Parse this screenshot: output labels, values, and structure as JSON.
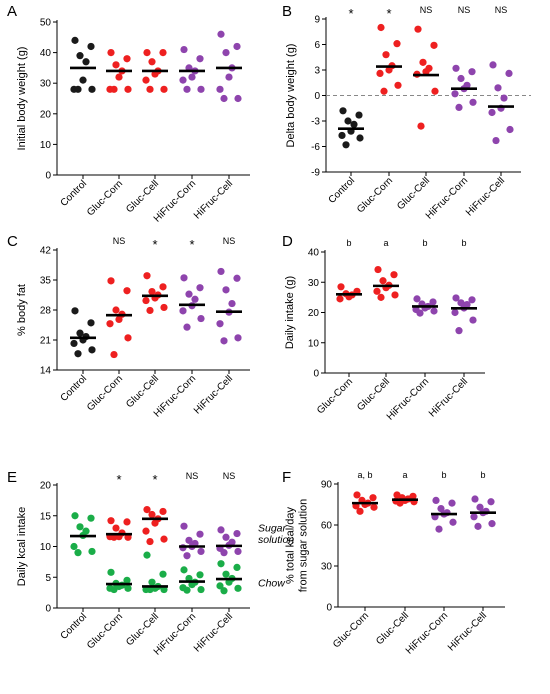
{
  "colors": {
    "black": "#1a1a1a",
    "red": "#ee2020",
    "purple": "#8e44ad",
    "green": "#1aad48"
  },
  "chart_data": [
    {
      "id": "A",
      "panel_label": "A",
      "type": "scatter",
      "ylabel": "Initial body weight (g)",
      "ylim": [
        0,
        50
      ],
      "yticks": [
        0,
        10,
        20,
        30,
        40,
        50
      ],
      "categories": [
        "Control",
        "Gluc-Corn",
        "Gluc-Cell",
        "HiFruc-Corn",
        "HiFruc-Cell"
      ],
      "annotations": [
        "",
        "",
        "",
        "",
        ""
      ],
      "reference_line": null,
      "groups": [
        {
          "category": "Control",
          "color": "black",
          "mean": 35,
          "points": [
            44,
            42,
            39,
            37,
            31,
            28,
            28,
            28
          ]
        },
        {
          "category": "Gluc-Corn",
          "color": "red",
          "mean": 34,
          "points": [
            40,
            38,
            36,
            34,
            32,
            28,
            28,
            28
          ]
        },
        {
          "category": "Gluc-Cell",
          "color": "red",
          "mean": 34,
          "points": [
            40,
            40,
            37,
            34,
            33,
            31,
            28,
            28
          ]
        },
        {
          "category": "HiFruc-Corn",
          "color": "purple",
          "mean": 34,
          "points": [
            41,
            38,
            35,
            34,
            32,
            31,
            28,
            28
          ]
        },
        {
          "category": "HiFruc-Cell",
          "color": "purple",
          "mean": 35,
          "points": [
            46,
            42,
            40,
            35,
            32,
            28,
            25,
            25
          ]
        }
      ]
    },
    {
      "id": "B",
      "panel_label": "B",
      "type": "scatter",
      "ylabel": "Delta body weight (g)",
      "ylim": [
        -9,
        9
      ],
      "yticks": [
        -9,
        -6,
        -3,
        0,
        3,
        6,
        9
      ],
      "categories": [
        "Control",
        "Gluc-Corn",
        "Gluc-Cell",
        "HiFruc-Corn",
        "HiFruc-Cell"
      ],
      "annotations": [
        "*",
        "*",
        "NS",
        "NS",
        "NS"
      ],
      "reference_line": 0,
      "groups": [
        {
          "category": "Control",
          "color": "black",
          "mean": -3.9,
          "points": [
            -1.8,
            -2.3,
            -3.0,
            -3.4,
            -4.2,
            -4.7,
            -5.0,
            -5.8
          ]
        },
        {
          "category": "Gluc-Corn",
          "color": "red",
          "mean": 3.4,
          "points": [
            8.0,
            6.1,
            4.8,
            3.5,
            3.0,
            2.6,
            1.2,
            0.5
          ]
        },
        {
          "category": "Gluc-Cell",
          "color": "red",
          "mean": 2.4,
          "points": [
            7.8,
            5.9,
            3.9,
            3.2,
            2.8,
            2.5,
            0.5,
            -3.6
          ]
        },
        {
          "category": "HiFruc-Corn",
          "color": "purple",
          "mean": 0.8,
          "points": [
            3.2,
            2.8,
            2.0,
            1.2,
            0.8,
            0.2,
            -0.8,
            -1.4
          ]
        },
        {
          "category": "HiFruc-Cell",
          "color": "purple",
          "mean": -1.3,
          "points": [
            3.6,
            2.6,
            0.9,
            -0.3,
            -1.5,
            -2.0,
            -4.0,
            -5.3
          ]
        }
      ]
    },
    {
      "id": "C",
      "panel_label": "C",
      "type": "scatter",
      "ylabel": "% body fat",
      "ylim": [
        14,
        42
      ],
      "yticks": [
        14,
        21,
        28,
        35,
        42
      ],
      "categories": [
        "Control",
        "Gluc-Corn",
        "Gluc-Cell",
        "HiFruc-Corn",
        "HiFruc-Cell"
      ],
      "annotations": [
        "",
        "NS",
        "*",
        "*",
        "NS"
      ],
      "reference_line": null,
      "groups": [
        {
          "category": "Control",
          "color": "black",
          "mean": 21.5,
          "points": [
            27.8,
            25.0,
            22.6,
            21.8,
            21.0,
            20.2,
            18.7,
            17.8
          ]
        },
        {
          "category": "Gluc-Corn",
          "color": "red",
          "mean": 26.8,
          "points": [
            34.8,
            32.5,
            28.0,
            27.0,
            25.8,
            24.8,
            21.5,
            17.6
          ]
        },
        {
          "category": "Gluc-Cell",
          "color": "red",
          "mean": 31.3,
          "points": [
            36.0,
            33.4,
            32.3,
            31.5,
            30.8,
            30.2,
            28.6,
            27.9
          ]
        },
        {
          "category": "HiFruc-Corn",
          "color": "purple",
          "mean": 29.2,
          "points": [
            35.5,
            33.2,
            31.7,
            30.5,
            29.0,
            27.8,
            26.0,
            24.0
          ]
        },
        {
          "category": "HiFruc-Cell",
          "color": "purple",
          "mean": 27.6,
          "points": [
            37.0,
            35.4,
            32.7,
            29.5,
            27.5,
            24.8,
            21.5,
            20.8
          ]
        }
      ]
    },
    {
      "id": "D",
      "panel_label": "D",
      "type": "scatter",
      "ylabel": "Daily intake (g)",
      "ylim": [
        0,
        40
      ],
      "yticks": [
        0,
        10,
        20,
        30,
        40
      ],
      "categories": [
        "Gluc-Corn",
        "Gluc-Cell",
        "HiFruc-Corn",
        "HiFruc-Cell"
      ],
      "annotations": [
        "b",
        "a",
        "b",
        "b"
      ],
      "reference_line": null,
      "groups": [
        {
          "category": "Gluc-Corn",
          "color": "red",
          "mean": 26,
          "points": [
            28.5,
            27.0,
            26.2,
            25.8,
            25.2,
            24.5
          ]
        },
        {
          "category": "Gluc-Cell",
          "color": "red",
          "mean": 28.8,
          "points": [
            34.2,
            32.5,
            30.5,
            29.0,
            28.2,
            27.0,
            25.8,
            25.0
          ]
        },
        {
          "category": "HiFruc-Corn",
          "color": "purple",
          "mean": 22,
          "points": [
            24.5,
            23.5,
            22.8,
            22.0,
            21.5,
            21.0,
            20.5,
            19.8
          ]
        },
        {
          "category": "HiFruc-Cell",
          "color": "purple",
          "mean": 21.4,
          "points": [
            24.8,
            24.2,
            23.2,
            22.6,
            21.5,
            20.0,
            17.5,
            14.0
          ]
        }
      ]
    },
    {
      "id": "E",
      "panel_label": "E",
      "type": "scatter",
      "ylabel": "Daily kcal intake",
      "ylim": [
        0,
        20
      ],
      "yticks": [
        0,
        5,
        10,
        15,
        20
      ],
      "categories": [
        "Control",
        "Gluc-Corn",
        "Gluc-Cell",
        "HiFruc-Corn",
        "HiFruc-Cell"
      ],
      "annotations": [
        "",
        "*",
        "*",
        "NS",
        "NS"
      ],
      "side_labels": [
        {
          "text": "Sugar",
          "value": 12.4
        },
        {
          "text": "solution",
          "value": 10.6
        },
        {
          "text": "Chow",
          "value": 3.5
        }
      ],
      "reference_line": null,
      "groups": [
        {
          "category": "Control",
          "color": "green",
          "mean": 11.7,
          "points": [
            15.0,
            14.6,
            13.2,
            12.5,
            11.8,
            10.0,
            9.2,
            9.0
          ]
        },
        {
          "category": "Gluc-Corn",
          "color": "red",
          "mean": 12.0,
          "points": [
            14.2,
            14.0,
            13.0,
            12.2,
            11.6,
            11.6,
            11.5,
            11.5
          ]
        },
        {
          "category": "Gluc-Corn",
          "color": "green",
          "mean": 3.9,
          "points": [
            5.8,
            4.5,
            4.0,
            3.7,
            3.5,
            3.2,
            3.2,
            3.0
          ]
        },
        {
          "category": "Gluc-Cell",
          "color": "red",
          "mean": 14.5,
          "points": [
            16.0,
            15.7,
            15.2,
            14.5,
            13.8,
            12.5,
            11.2,
            10.8
          ]
        },
        {
          "category": "Gluc-Cell",
          "color": "green",
          "mean": 3.5,
          "points": [
            8.6,
            5.5,
            4.2,
            3.5,
            3.2,
            3.0,
            3.0,
            3.0
          ]
        },
        {
          "category": "HiFruc-Corn",
          "color": "purple",
          "mean": 10.0,
          "points": [
            13.3,
            12.0,
            11.0,
            10.5,
            10.0,
            9.8,
            9.2,
            8.5
          ]
        },
        {
          "category": "HiFruc-Corn",
          "color": "green",
          "mean": 4.3,
          "points": [
            6.2,
            5.4,
            4.8,
            4.2,
            3.8,
            3.3,
            3.0,
            2.9
          ]
        },
        {
          "category": "HiFruc-Cell",
          "color": "purple",
          "mean": 10.1,
          "points": [
            12.7,
            12.1,
            11.5,
            10.7,
            10.2,
            9.7,
            9.2,
            9.0
          ]
        },
        {
          "category": "HiFruc-Cell",
          "color": "green",
          "mean": 4.7,
          "points": [
            7.2,
            6.6,
            5.5,
            4.8,
            4.2,
            3.6,
            3.2,
            2.8
          ]
        }
      ]
    },
    {
      "id": "F",
      "panel_label": "F",
      "type": "scatter",
      "ylabel": "% total kcal/day\nfrom sugar solution",
      "ylim": [
        0,
        90
      ],
      "yticks": [
        0,
        30,
        60,
        90
      ],
      "categories": [
        "Gluc-Corn",
        "Gluc-Cell",
        "HiFruc-Corn",
        "HiFruc-Cell"
      ],
      "annotations": [
        "a, b",
        "a",
        "b",
        "b"
      ],
      "reference_line": null,
      "groups": [
        {
          "category": "Gluc-Corn",
          "color": "red",
          "mean": 76,
          "points": [
            82,
            80,
            78,
            76,
            75,
            74,
            73,
            70
          ]
        },
        {
          "category": "Gluc-Cell",
          "color": "red",
          "mean": 78.5,
          "points": [
            82,
            81,
            80,
            79,
            78,
            77.5,
            77,
            76
          ]
        },
        {
          "category": "HiFruc-Corn",
          "color": "purple",
          "mean": 68,
          "points": [
            78,
            76,
            72,
            69,
            68,
            66,
            62,
            57
          ]
        },
        {
          "category": "HiFruc-Cell",
          "color": "purple",
          "mean": 69,
          "points": [
            79,
            77,
            73,
            70,
            69,
            66,
            61,
            59
          ]
        }
      ]
    }
  ]
}
